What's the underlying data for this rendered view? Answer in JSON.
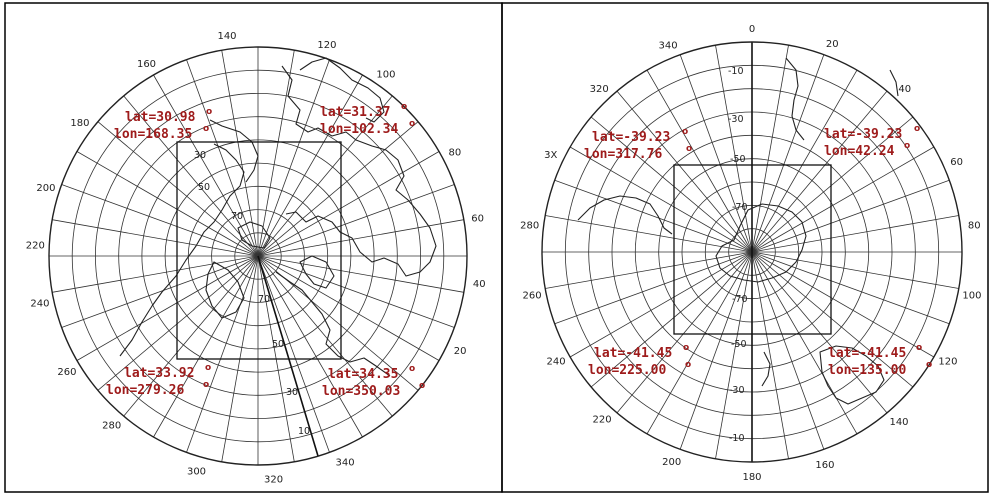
{
  "panels": [
    {
      "id": "north",
      "meridian_labels": [
        {
          "text": "140",
          "az": 352
        },
        {
          "text": "120",
          "az": 18
        },
        {
          "text": "100",
          "az": 35
        },
        {
          "text": "80",
          "az": 62
        },
        {
          "text": "60",
          "az": 80
        },
        {
          "text": "40",
          "az": 97
        },
        {
          "text": "20",
          "az": 115
        },
        {
          "text": "340",
          "az": 157
        },
        {
          "text": "320",
          "az": 176
        },
        {
          "text": "300",
          "az": 196
        },
        {
          "text": "280",
          "az": 221
        },
        {
          "text": "260",
          "az": 239
        },
        {
          "text": "240",
          "az": 258
        },
        {
          "text": "220",
          "az": 273
        },
        {
          "text": "200",
          "az": 288
        },
        {
          "text": "180",
          "az": 307
        },
        {
          "text": "160",
          "az": 330
        }
      ],
      "latitude_labels": [
        "30",
        "50",
        "70",
        "70",
        "50",
        "30",
        "10"
      ],
      "corners": [
        {
          "lat": "lat=30.98",
          "lon": "lon=168.35"
        },
        {
          "lat": "lat=31.37",
          "lon": "lon=102.34"
        },
        {
          "lat": "lat=33.92",
          "lon": "lon=279.26"
        },
        {
          "lat": "lat=34.35",
          "lon": "lon=350.03"
        }
      ]
    },
    {
      "id": "south",
      "meridian_labels": [
        {
          "text": "0",
          "az": 0
        },
        {
          "text": "20",
          "az": 21
        },
        {
          "text": "40",
          "az": 43
        },
        {
          "text": "60",
          "az": 66
        },
        {
          "text": "80",
          "az": 83
        },
        {
          "text": "100",
          "az": 101
        },
        {
          "text": "120",
          "az": 119
        },
        {
          "text": "140",
          "az": 139
        },
        {
          "text": "160",
          "az": 161
        },
        {
          "text": "180",
          "az": 180
        },
        {
          "text": "200",
          "az": 201
        },
        {
          "text": "220",
          "az": 222
        },
        {
          "text": "240",
          "az": 241
        },
        {
          "text": "260",
          "az": 259
        },
        {
          "text": "280",
          "az": 277
        },
        {
          "text": "3X",
          "az": 296
        },
        {
          "text": "320",
          "az": 317
        },
        {
          "text": "340",
          "az": 338
        }
      ],
      "latitude_labels": [
        "-10",
        "-30",
        "-50",
        "-70",
        "-70",
        "-50",
        "-30",
        "-10"
      ],
      "corners": [
        {
          "lat": "lat=-39.23",
          "lon": "lon=317.76"
        },
        {
          "lat": "lat=-39.23",
          "lon": "lon=42.24"
        },
        {
          "lat": "lat=-41.45",
          "lon": "lon=225.00"
        },
        {
          "lat": "lat=-41.45",
          "lon": "lon=135.00"
        }
      ]
    }
  ],
  "degree_symbol": "o",
  "colors": {
    "annotation": "#9e1b1b",
    "grid": "#333333",
    "frame": "#000000"
  }
}
